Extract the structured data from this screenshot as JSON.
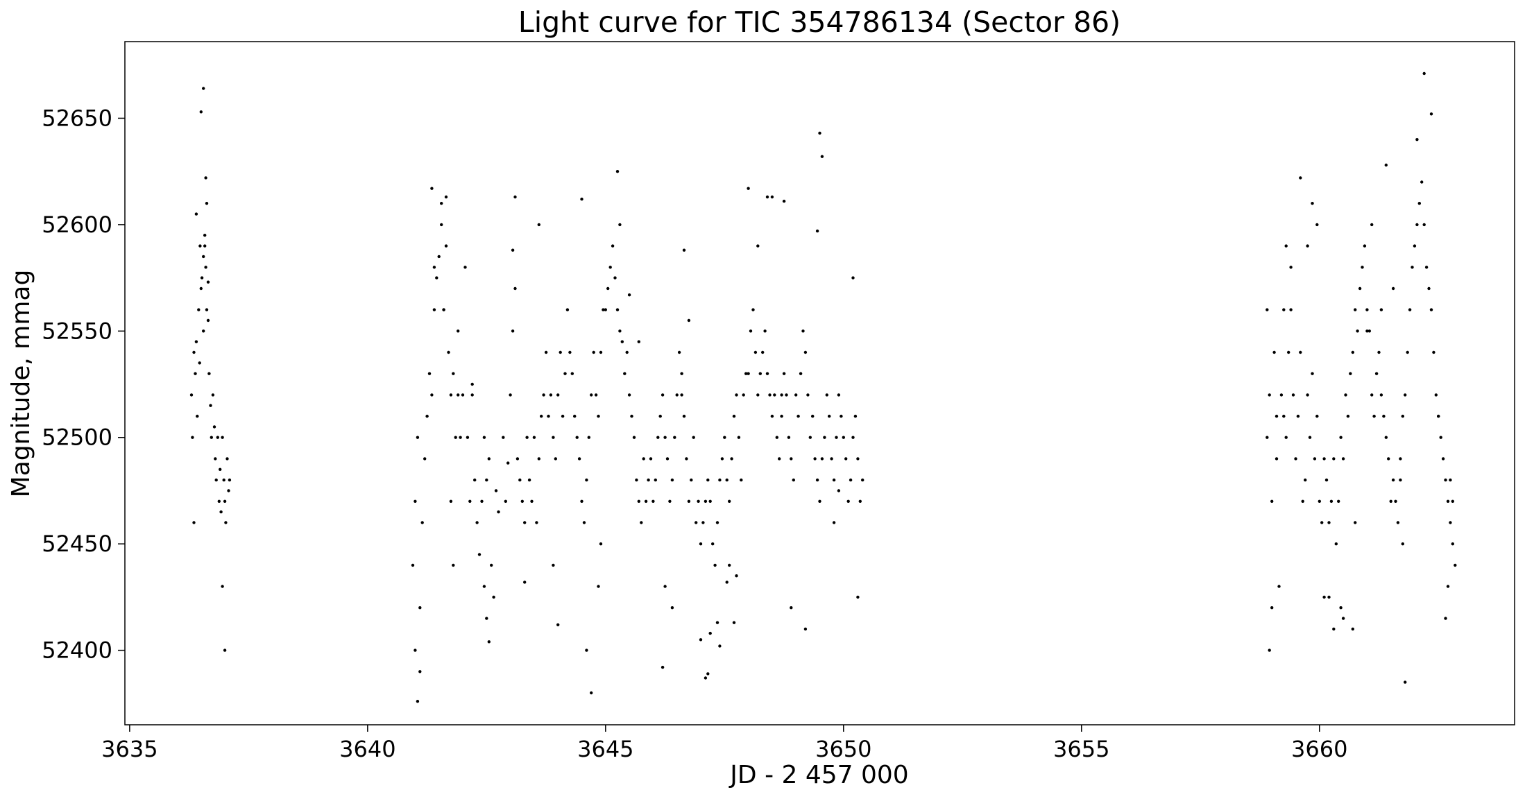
{
  "chart_data": {
    "type": "scatter",
    "title": "Light curve for TIC 354786134 (Sector 86)",
    "xlabel": "JD - 2 457 000",
    "ylabel": "Magnitude, mmag",
    "xlim": [
      3634.9,
      3664.1
    ],
    "ylim": [
      52365,
      52686
    ],
    "y_inverted": false,
    "grid": false,
    "legend": "none",
    "marker_color": "#000000",
    "xticks": [
      {
        "value": 3635,
        "label": "3635"
      },
      {
        "value": 3640,
        "label": "3640"
      },
      {
        "value": 3645,
        "label": "3645"
      },
      {
        "value": 3650,
        "label": "3650"
      },
      {
        "value": 3655,
        "label": "3655"
      },
      {
        "value": 3660,
        "label": "3660"
      }
    ],
    "yticks": [
      {
        "value": 52400,
        "label": "52400"
      },
      {
        "value": 52450,
        "label": "52450"
      },
      {
        "value": 52500,
        "label": "52500"
      },
      {
        "value": 52550,
        "label": "52550"
      },
      {
        "value": 52600,
        "label": "52600"
      },
      {
        "value": 52650,
        "label": "52650"
      }
    ],
    "series": [
      {
        "marker": "dot",
        "x": [
          3636.3,
          3636.32,
          3636.35,
          3636.38,
          3636.4,
          3636.42,
          3636.45,
          3636.47,
          3636.5,
          3636.52,
          3636.55,
          3636.58,
          3636.6,
          3636.62,
          3636.65,
          3636.67,
          3636.7,
          3636.72,
          3636.75,
          3636.78,
          3636.8,
          3636.82,
          3636.85,
          3636.88,
          3636.9,
          3636.92,
          3636.95,
          3636.98,
          3637.0,
          3637.02,
          3637.05,
          3637.08,
          3637.1,
          3636.35,
          3636.4,
          3636.5,
          3636.55,
          3636.6,
          3636.58,
          3636.95,
          3637.0,
          3636.62,
          3636.65,
          3636.48,
          3636.55,
          3640.95,
          3641.0,
          3641.05,
          3641.1,
          3641.15,
          3641.2,
          3641.25,
          3641.3,
          3641.35,
          3641.4,
          3641.45,
          3641.5,
          3641.55,
          3641.6,
          3641.65,
          3641.7,
          3641.75,
          3641.8,
          3641.85,
          3641.9,
          3641.95,
          3642.0,
          3641.0,
          3641.05,
          3641.1,
          3641.35,
          3641.4,
          3641.55,
          3641.6,
          3641.65,
          3641.75,
          3641.8,
          3641.9,
          3642.05,
          3642.2,
          3642.1,
          3642.15,
          3642.2,
          3642.25,
          3642.3,
          3642.35,
          3642.4,
          3642.45,
          3642.5,
          3642.55,
          3642.6,
          3642.65,
          3642.7,
          3642.75,
          3642.45,
          3642.5,
          3642.55,
          3642.85,
          3642.9,
          3642.95,
          3643.0,
          3643.05,
          3643.1,
          3643.15,
          3643.2,
          3643.25,
          3643.3,
          3643.35,
          3643.4,
          3643.45,
          3643.5,
          3643.55,
          3643.6,
          3643.65,
          3643.7,
          3643.75,
          3643.8,
          3643.85,
          3643.9,
          3643.95,
          3644.0,
          3644.05,
          3644.1,
          3644.15,
          3644.2,
          3644.25,
          3644.3,
          3644.35,
          3644.4,
          3644.45,
          3644.5,
          3644.55,
          3644.6,
          3644.65,
          3644.7,
          3644.75,
          3644.8,
          3644.85,
          3644.9,
          3644.95,
          3645.0,
          3645.05,
          3645.1,
          3645.15,
          3645.2,
          3645.25,
          3645.3,
          3645.35,
          3645.4,
          3645.45,
          3645.5,
          3645.55,
          3645.6,
          3645.65,
          3645.7,
          3645.75,
          3645.8,
          3645.85,
          3645.9,
          3645.95,
          3646.0,
          3646.05,
          3646.1,
          3646.15,
          3646.2,
          3646.25,
          3646.3,
          3646.35,
          3646.4,
          3646.45,
          3646.5,
          3646.55,
          3646.6,
          3646.65,
          3646.7,
          3646.75,
          3646.8,
          3646.85,
          3646.9,
          3646.95,
          3647.0,
          3647.05,
          3647.1,
          3647.15,
          3647.2,
          3647.25,
          3647.3,
          3647.35,
          3647.4,
          3647.45,
          3647.5,
          3647.55,
          3647.6,
          3647.65,
          3647.7,
          3647.75,
          3647.8,
          3647.85,
          3647.9,
          3647.95,
          3648.0,
          3648.05,
          3648.1,
          3648.15,
          3648.2,
          3648.25,
          3648.3,
          3648.35,
          3648.4,
          3648.45,
          3648.5,
          3648.55,
          3648.6,
          3648.65,
          3648.7,
          3648.75,
          3648.8,
          3648.85,
          3648.9,
          3648.95,
          3649.0,
          3649.05,
          3649.1,
          3649.15,
          3649.2,
          3649.25,
          3649.3,
          3649.35,
          3649.4,
          3649.45,
          3649.5,
          3649.55,
          3649.6,
          3649.65,
          3649.7,
          3649.75,
          3649.8,
          3649.85,
          3649.9,
          3649.95,
          3650.0,
          3650.05,
          3650.1,
          3650.15,
          3650.2,
          3650.25,
          3650.3,
          3650.35,
          3650.4,
          3643.1,
          3643.6,
          3643.9,
          3644.5,
          3644.7,
          3644.85,
          3645.25,
          3645.3,
          3646.2,
          3646.4,
          3646.6,
          3646.75,
          3647.1,
          3647.15,
          3647.35,
          3647.6,
          3647.7,
          3647.75,
          3648.0,
          3648.5,
          3648.7,
          3648.9,
          3649.5,
          3649.55,
          3649.8,
          3650.2,
          3643.05,
          3643.3,
          3644.0,
          3644.6,
          3644.9,
          3645.5,
          3645.7,
          3646.25,
          3646.65,
          3647.0,
          3647.2,
          3647.4,
          3647.55,
          3648.2,
          3648.4,
          3648.75,
          3649.2,
          3649.45,
          3649.9,
          3650.3,
          3658.9,
          3658.95,
          3659.0,
          3659.05,
          3659.1,
          3659.15,
          3659.2,
          3659.25,
          3659.3,
          3659.35,
          3659.4,
          3659.45,
          3659.5,
          3659.55,
          3659.6,
          3659.65,
          3659.7,
          3659.75,
          3659.8,
          3659.85,
          3659.9,
          3659.95,
          3660.0,
          3660.05,
          3660.1,
          3660.15,
          3660.2,
          3660.25,
          3660.3,
          3660.35,
          3660.4,
          3660.45,
          3660.5,
          3660.55,
          3660.6,
          3660.65,
          3660.7,
          3660.75,
          3660.8,
          3660.85,
          3660.9,
          3660.95,
          3661.0,
          3661.05,
          3661.1,
          3661.15,
          3661.2,
          3661.25,
          3661.3,
          3661.35,
          3661.4,
          3661.45,
          3661.5,
          3661.55,
          3661.6,
          3661.65,
          3661.7,
          3661.75,
          3661.8,
          3661.85,
          3661.9,
          3661.95,
          3662.0,
          3662.05,
          3662.1,
          3662.15,
          3662.2,
          3662.25,
          3662.3,
          3662.35,
          3662.4,
          3662.45,
          3662.5,
          3662.55,
          3662.6,
          3662.65,
          3662.7,
          3662.75,
          3662.8,
          3662.85,
          3658.95,
          3659.0,
          3659.25,
          3659.4,
          3659.75,
          3659.95,
          3660.1,
          3660.3,
          3660.5,
          3660.75,
          3661.1,
          3661.4,
          3661.75,
          3661.8,
          3662.2,
          3662.35,
          3662.65,
          3662.7,
          3662.8,
          3658.9,
          3659.1,
          3659.3,
          3659.6,
          3659.85,
          3660.2,
          3660.45,
          3660.7,
          3661.0,
          3661.3,
          3661.55,
          3661.7,
          3662.05,
          3662.5,
          3662.75
        ],
        "y": [
          52520,
          52500,
          52540,
          52530,
          52545,
          52510,
          52560,
          52535,
          52570,
          52575,
          52550,
          52590,
          52580,
          52560,
          52555,
          52530,
          52515,
          52500,
          52520,
          52505,
          52490,
          52480,
          52500,
          52470,
          52485,
          52465,
          52500,
          52480,
          52470,
          52460,
          52490,
          52475,
          52480,
          52460,
          52605,
          52653,
          52664,
          52622,
          52595,
          52430,
          52400,
          52610,
          52573,
          52590,
          52585,
          52440,
          52470,
          52500,
          52420,
          52460,
          52490,
          52510,
          52530,
          52520,
          52560,
          52575,
          52585,
          52600,
          52560,
          52590,
          52540,
          52520,
          52530,
          52500,
          52550,
          52500,
          52520,
          52400,
          52376,
          52390,
          52617,
          52580,
          52610,
          52560,
          52613,
          52470,
          52440,
          52520,
          52580,
          52525,
          52500,
          52470,
          52520,
          52480,
          52460,
          52445,
          52470,
          52500,
          52480,
          52490,
          52440,
          52425,
          52475,
          52465,
          52430,
          52415,
          52404,
          52500,
          52470,
          52488,
          52520,
          52550,
          52570,
          52490,
          52480,
          52470,
          52460,
          52500,
          52480,
          52470,
          52500,
          52460,
          52490,
          52510,
          52520,
          52540,
          52510,
          52520,
          52500,
          52490,
          52520,
          52540,
          52510,
          52530,
          52560,
          52540,
          52530,
          52510,
          52500,
          52490,
          52470,
          52460,
          52480,
          52500,
          52520,
          52540,
          52520,
          52510,
          52540,
          52560,
          52560,
          52570,
          52580,
          52590,
          52575,
          52560,
          52550,
          52545,
          52530,
          52540,
          52520,
          52510,
          52500,
          52480,
          52470,
          52460,
          52490,
          52470,
          52480,
          52490,
          52470,
          52480,
          52500,
          52510,
          52520,
          52500,
          52490,
          52470,
          52480,
          52500,
          52520,
          52540,
          52530,
          52510,
          52490,
          52470,
          52480,
          52500,
          52460,
          52470,
          52450,
          52460,
          52470,
          52480,
          52470,
          52450,
          52440,
          52460,
          52480,
          52490,
          52500,
          52480,
          52470,
          52490,
          52510,
          52520,
          52500,
          52480,
          52520,
          52530,
          52530,
          52550,
          52560,
          52540,
          52520,
          52530,
          52540,
          52550,
          52530,
          52520,
          52510,
          52520,
          52500,
          52490,
          52510,
          52530,
          52520,
          52500,
          52490,
          52480,
          52520,
          52510,
          52530,
          52550,
          52540,
          52520,
          52500,
          52510,
          52490,
          52480,
          52470,
          52490,
          52500,
          52520,
          52510,
          52490,
          52480,
          52500,
          52520,
          52510,
          52500,
          52490,
          52470,
          52480,
          52500,
          52510,
          52490,
          52470,
          52480,
          52613,
          52600,
          52440,
          52612,
          52380,
          52430,
          52625,
          52600,
          52392,
          52420,
          52520,
          52555,
          52387,
          52389,
          52413,
          52440,
          52413,
          52435,
          52617,
          52613,
          52520,
          52420,
          52643,
          52632,
          52460,
          52575,
          52588,
          52432,
          52412,
          52400,
          52450,
          52567,
          52545,
          52430,
          52588,
          52405,
          52408,
          52402,
          52432,
          52590,
          52613,
          52611,
          52410,
          52597,
          52475,
          52425,
          52500,
          52520,
          52470,
          52540,
          52490,
          52430,
          52520,
          52560,
          52500,
          52540,
          52580,
          52520,
          52490,
          52510,
          52540,
          52470,
          52480,
          52520,
          52500,
          52530,
          52490,
          52510,
          52470,
          52460,
          52490,
          52480,
          52460,
          52470,
          52490,
          52450,
          52470,
          52500,
          52490,
          52520,
          52510,
          52530,
          52540,
          52560,
          52550,
          52570,
          52580,
          52590,
          52560,
          52550,
          52520,
          52510,
          52530,
          52540,
          52520,
          52510,
          52500,
          52490,
          52470,
          52480,
          52470,
          52460,
          52490,
          52510,
          52520,
          52540,
          52560,
          52580,
          52590,
          52600,
          52610,
          52620,
          52600,
          52580,
          52570,
          52560,
          52540,
          52520,
          52510,
          52500,
          52490,
          52480,
          52470,
          52460,
          52450,
          52440,
          52400,
          52420,
          52510,
          52560,
          52590,
          52600,
          52425,
          52410,
          52415,
          52460,
          52600,
          52628,
          52450,
          52385,
          52671,
          52652,
          52415,
          52430,
          52470,
          52560,
          52510,
          52590,
          52622,
          52610,
          52425,
          52420,
          52410,
          52550,
          52560,
          52570,
          52480,
          52640,
          52510,
          52480
        ]
      }
    ]
  }
}
